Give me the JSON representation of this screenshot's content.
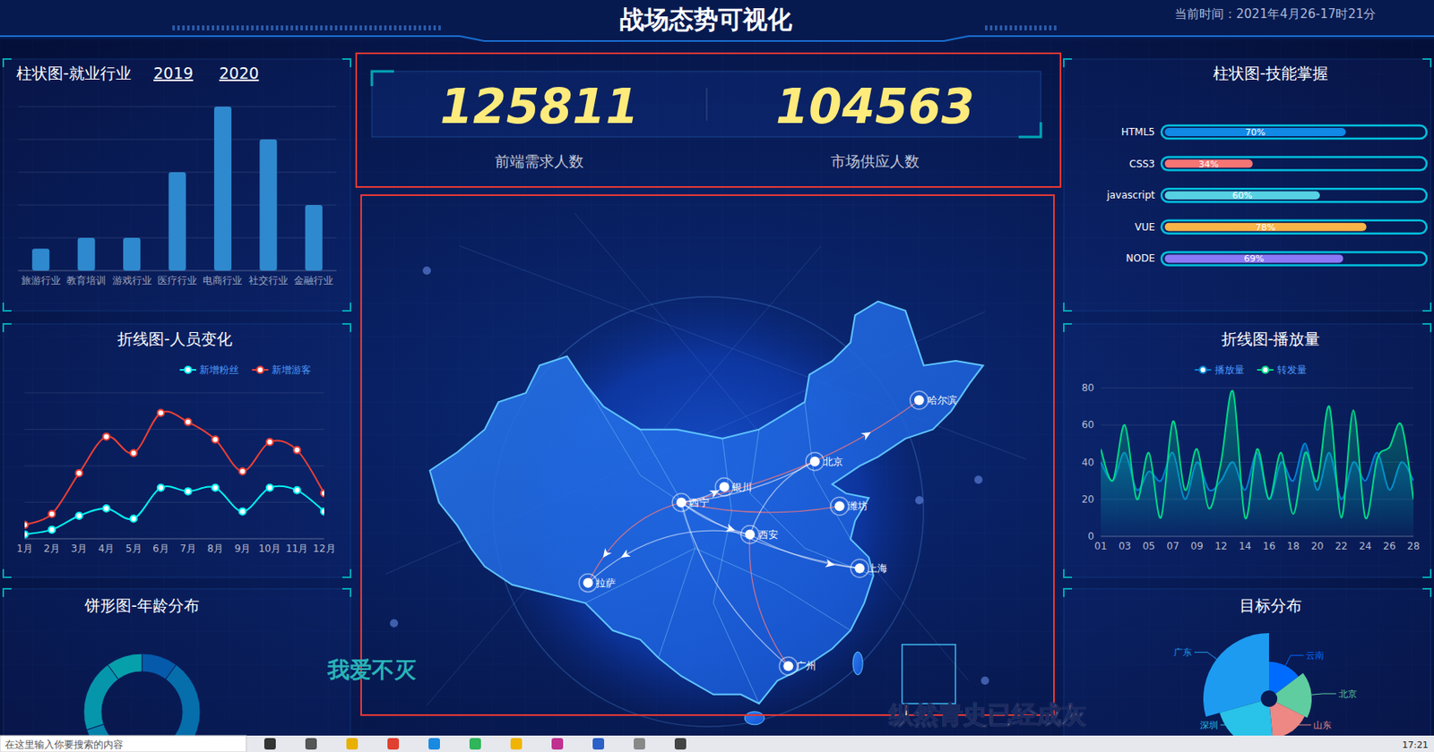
{
  "header": {
    "title": "战场态势可视化",
    "time": "当前时间：2021年4月26-17时21分"
  },
  "counters": [
    {
      "value": 125811,
      "label": "前端需求人数"
    },
    {
      "value": 104563,
      "label": "市场供应人数"
    }
  ],
  "chart_data": [
    {
      "type": "bar",
      "title": "柱状图-就业行业",
      "annotations": [
        "2019",
        "2020"
      ],
      "categories": [
        "旅游行业",
        "教育培训",
        "游戏行业",
        "医疗行业",
        "电商行业",
        "社交行业",
        "金融行业"
      ],
      "values": [
        200,
        300,
        300,
        900,
        1500,
        1200,
        600
      ],
      "color": "#2f89cf",
      "ylim": [
        0,
        1500
      ],
      "yticks": [
        0,
        300,
        600,
        900,
        1200,
        1500
      ],
      "grid": true,
      "tick_labels": "x"
    },
    {
      "type": "line",
      "title": "折线图-人员变化",
      "categories": [
        "1月",
        "2月",
        "3月",
        "4月",
        "5月",
        "6月",
        "7月",
        "8月",
        "9月",
        "10月",
        "11月",
        "12月"
      ],
      "series": [
        {
          "name": "新增粉丝",
          "color": "#00f2f1",
          "values": [
            12,
            25,
            63,
            83,
            55,
            140,
            130,
            140,
            75,
            140,
            133,
            75
          ]
        },
        {
          "name": "新增游客",
          "color": "#ed3f35",
          "values": [
            38,
            68,
            180,
            280,
            235,
            345,
            320,
            272,
            185,
            265,
            243,
            125
          ]
        }
      ],
      "ylim": [
        0,
        400
      ],
      "yticks": [
        0,
        100,
        200,
        300,
        400
      ],
      "grid": true,
      "tick_labels": "x",
      "legend": "top-right",
      "marker": "circle"
    },
    {
      "type": "donut",
      "title": "饼形图-年龄分布",
      "values": [
        1,
        4,
        2,
        2,
        1
      ],
      "colors": [
        "#065aab",
        "#066eab",
        "#0682ab",
        "#0696ab",
        "#06a0ab"
      ]
    },
    {
      "type": "bar",
      "orientation": "horizontal",
      "title": "柱状图-技能掌握",
      "categories": [
        "HTML5",
        "CSS3",
        "javascript",
        "VUE",
        "NODE"
      ],
      "values": [
        70,
        34,
        60,
        78,
        69
      ],
      "value_labels": [
        "70%",
        "34%",
        "60%",
        "78%",
        "69%"
      ],
      "colors": [
        "#1089e7",
        "#f57474",
        "#56d0e3",
        "#f8b448",
        "#8b78f6"
      ],
      "xlim": [
        0,
        100
      ],
      "data_labels": true,
      "tick_labels": "y"
    },
    {
      "type": "line",
      "title": "折线图-播放量",
      "categories": [
        "01",
        null,
        "03",
        null,
        "05",
        null,
        "07",
        null,
        "09",
        null,
        "12",
        null,
        "14",
        null,
        "16",
        null,
        "18",
        null,
        "20",
        null,
        "22",
        null,
        "24",
        null,
        "26",
        null,
        "28"
      ],
      "series": [
        {
          "name": "播放量",
          "color": "#0184d5",
          "values": [
            40,
            30,
            45,
            25,
            35,
            30,
            45,
            20,
            40,
            25,
            30,
            40,
            25,
            45,
            20,
            40,
            30,
            50,
            25,
            45,
            20,
            40,
            30,
            45,
            25,
            40,
            30
          ]
        },
        {
          "name": "转发量",
          "color": "#00d887",
          "values": [
            47,
            30,
            60,
            20,
            45,
            10,
            62,
            25,
            47,
            15,
            40,
            78,
            10,
            47,
            20,
            45,
            12,
            45,
            30,
            70,
            10,
            68,
            10,
            42,
            48,
            60,
            20
          ]
        }
      ],
      "ylim": [
        0,
        80
      ],
      "yticks": [
        0,
        20,
        40,
        60,
        80
      ],
      "grid": true,
      "legend": "top"
    },
    {
      "type": "rose",
      "title": "目标分布",
      "categories": [
        "云南",
        "北京",
        "山东",
        "深圳",
        "广东"
      ],
      "values": [
        20,
        24,
        22,
        30,
        40
      ],
      "colors": [
        "#006cff",
        "#60cda0",
        "#ed8884",
        "#29c2e8",
        "#1d9bf0"
      ]
    }
  ],
  "map": {
    "cities": [
      "哈尔滨",
      "北京",
      "银川",
      "西宁",
      "潍坊",
      "西安",
      "上海",
      "拉萨",
      "广州"
    ]
  },
  "captions": [
    "我爱不灭",
    "纵然青史已经成灰"
  ],
  "taskbar": {
    "search": "在这里输入你要搜索的内容",
    "clock": "17:21"
  }
}
